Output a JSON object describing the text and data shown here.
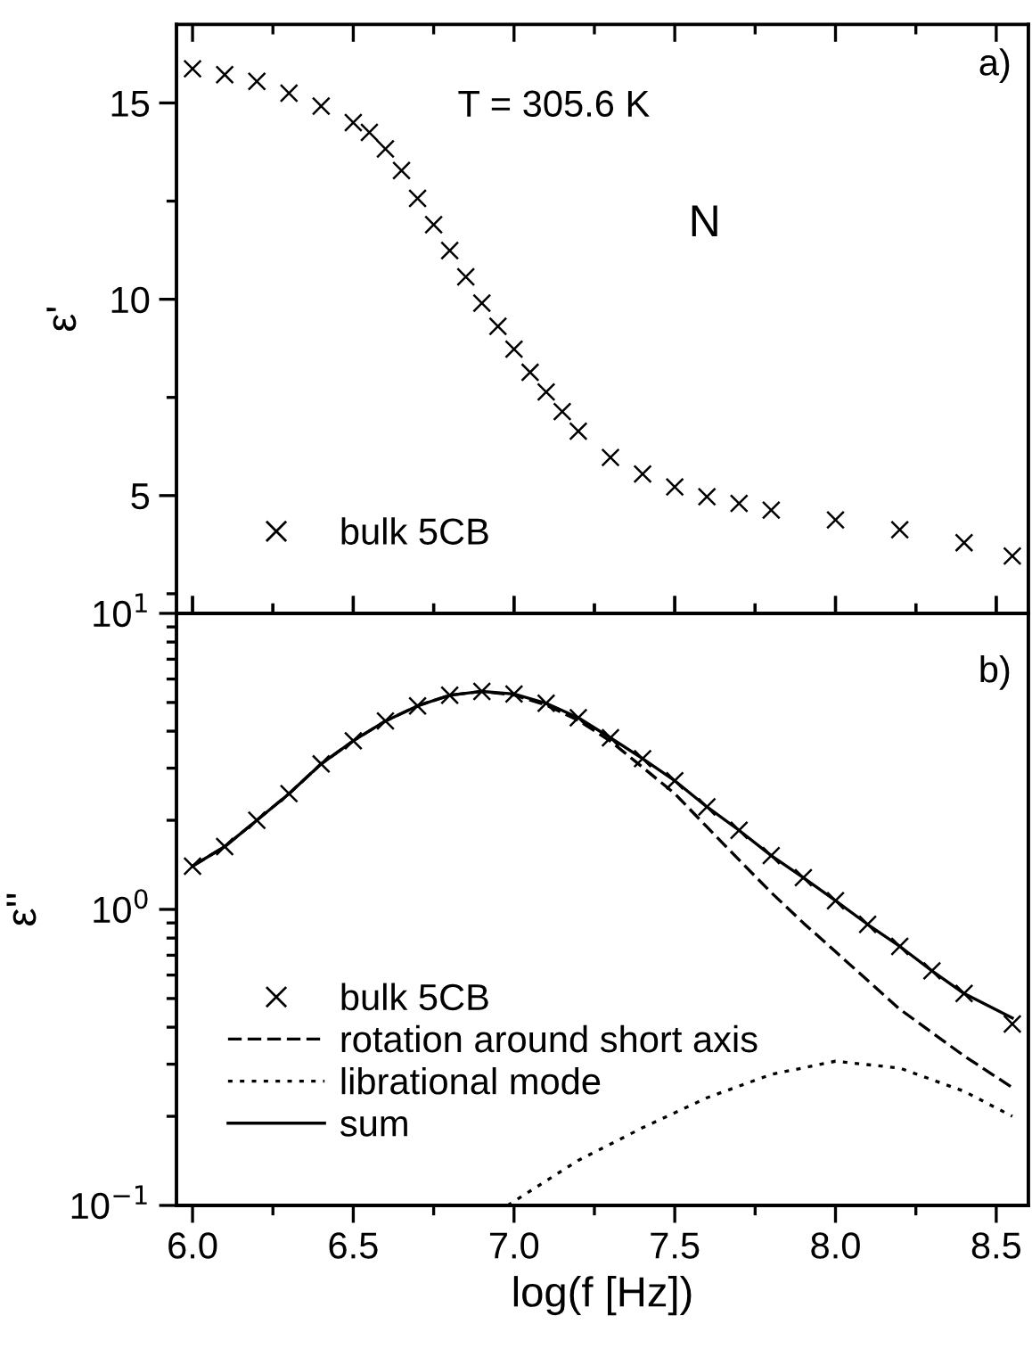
{
  "chart_data": [
    {
      "type": "scatter",
      "ylabel": "ε'",
      "annotations": [
        "T = 305.6 K",
        "N",
        "a)"
      ],
      "legend": "bottom left",
      "marker": "cross",
      "tick_labels": "y",
      "xlim": [
        5.95,
        8.6
      ],
      "xticks": [
        6,
        {
          "value": 6.25,
          "label": null
        },
        6.5,
        {
          "value": 6.75,
          "label": null
        },
        7,
        {
          "value": 7.25,
          "label": null
        },
        7.5,
        {
          "value": 7.75,
          "label": null
        },
        8,
        {
          "value": 8.25,
          "label": null
        },
        8.5
      ],
      "ylim": [
        2,
        17
      ],
      "yticks": [
        {
          "value": 2.5,
          "label": null
        },
        5,
        {
          "value": 7.5,
          "label": null
        },
        10,
        {
          "value": 12.5,
          "label": null
        },
        15
      ],
      "series": [
        {
          "name": "bulk 5CB",
          "color": "#000000",
          "x": [
            6.0,
            6.1,
            6.2,
            6.3,
            6.4,
            6.5,
            6.55,
            6.6,
            6.65,
            6.7,
            6.75,
            6.8,
            6.85,
            6.9,
            6.95,
            7.0,
            7.05,
            7.1,
            7.15,
            7.2,
            7.3,
            7.4,
            7.5,
            7.6,
            7.7,
            7.8,
            8.0,
            8.2,
            8.4,
            8.55
          ],
          "values": [
            15.87,
            15.72,
            15.55,
            15.25,
            14.92,
            14.5,
            14.25,
            13.83,
            13.28,
            12.57,
            11.9,
            11.24,
            10.57,
            9.9,
            9.31,
            8.73,
            8.14,
            7.64,
            7.14,
            6.64,
            5.97,
            5.55,
            5.22,
            4.97,
            4.8,
            4.63,
            4.38,
            4.13,
            3.8,
            3.46
          ]
        }
      ]
    },
    {
      "type": "line",
      "xlabel": "log(f [Hz])",
      "ylabel": "ε''",
      "annotations": [
        "b)"
      ],
      "legend": "bottom left",
      "log": "y",
      "xlim": [
        5.95,
        8.6
      ],
      "xticks": [
        {
          "value": 6,
          "label": "6.0"
        },
        {
          "value": 6.25,
          "label": null
        },
        6.5,
        {
          "value": 6.75,
          "label": null
        },
        {
          "value": 7,
          "label": "7.0"
        },
        {
          "value": 7.25,
          "label": null
        },
        7.5,
        {
          "value": 7.75,
          "label": null
        },
        {
          "value": 8,
          "label": "8.0"
        },
        {
          "value": 8.25,
          "label": null
        },
        8.5
      ],
      "ylim": [
        0.1,
        10
      ],
      "yticks": [
        {
          "value": 0.1,
          "label": "10$^{−1}$"
        },
        {
          "value": 1,
          "label": "10$^{0}$"
        },
        {
          "value": 10,
          "label": "10$^{1}$"
        }
      ],
      "series": [
        {
          "name": "bulk 5CB",
          "type": "scatter",
          "marker": "cross",
          "color": "#000000",
          "x": [
            6.0,
            6.1,
            6.2,
            6.3,
            6.4,
            6.5,
            6.6,
            6.7,
            6.8,
            6.9,
            7.0,
            7.1,
            7.2,
            7.3,
            7.4,
            7.5,
            7.6,
            7.7,
            7.8,
            7.9,
            8.0,
            8.1,
            8.2,
            8.3,
            8.4,
            8.55
          ],
          "values": [
            1.4,
            1.63,
            2.0,
            2.46,
            3.1,
            3.71,
            4.33,
            4.87,
            5.29,
            5.45,
            5.34,
            4.97,
            4.44,
            3.8,
            3.23,
            2.72,
            2.22,
            1.85,
            1.52,
            1.28,
            1.07,
            0.89,
            0.75,
            0.62,
            0.52,
            0.41
          ]
        },
        {
          "name": "rotation around short axis",
          "line_style": "dashed",
          "color": "#000000",
          "x": [
            6.0,
            6.1,
            6.2,
            6.3,
            6.4,
            6.5,
            6.6,
            6.7,
            6.8,
            6.9,
            7.0,
            7.1,
            7.2,
            7.3,
            7.4,
            7.5,
            7.6,
            7.7,
            7.8,
            7.9,
            8.0,
            8.2,
            8.4,
            8.55
          ],
          "values": [
            1.4,
            1.63,
            2.0,
            2.46,
            3.1,
            3.71,
            4.33,
            4.87,
            5.29,
            5.45,
            5.3,
            4.9,
            4.35,
            3.7,
            3.02,
            2.46,
            1.9,
            1.47,
            1.14,
            0.9,
            0.72,
            0.46,
            0.32,
            0.25
          ]
        },
        {
          "name": "librational mode",
          "line_style": "dotted",
          "color": "#000000",
          "x": [
            6.98,
            7.2,
            7.4,
            7.6,
            7.8,
            8.0,
            8.2,
            8.4,
            8.55
          ],
          "values": [
            0.1,
            0.142,
            0.183,
            0.231,
            0.277,
            0.307,
            0.291,
            0.243,
            0.2
          ]
        },
        {
          "name": "sum",
          "line_style": "solid",
          "color": "#000000",
          "x": [
            6.0,
            6.1,
            6.2,
            6.3,
            6.4,
            6.5,
            6.6,
            6.7,
            6.8,
            6.9,
            7.0,
            7.1,
            7.2,
            7.3,
            7.4,
            7.5,
            7.6,
            7.7,
            7.8,
            7.9,
            8.0,
            8.1,
            8.2,
            8.3,
            8.4,
            8.55
          ],
          "values": [
            1.4,
            1.63,
            2.0,
            2.46,
            3.1,
            3.71,
            4.33,
            4.87,
            5.29,
            5.45,
            5.34,
            4.97,
            4.44,
            3.8,
            3.23,
            2.72,
            2.22,
            1.85,
            1.52,
            1.28,
            1.07,
            0.89,
            0.75,
            0.62,
            0.52,
            0.43
          ]
        }
      ]
    }
  ]
}
